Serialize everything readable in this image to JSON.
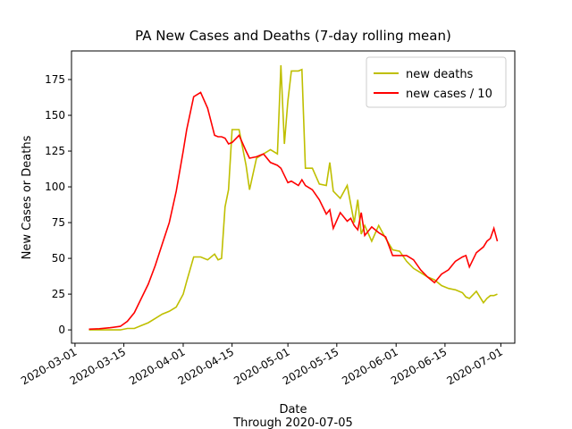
{
  "chart_data": {
    "type": "line",
    "title": "PA New Cases and Deaths (7-day rolling mean)",
    "x_label": "Date",
    "x_label_note": "Through 2020-07-05",
    "y_label": "New Cases or Deaths",
    "x": [
      "2020-03-05",
      "2020-03-08",
      "2020-03-11",
      "2020-03-14",
      "2020-03-16",
      "2020-03-18",
      "2020-03-20",
      "2020-03-22",
      "2020-03-24",
      "2020-03-26",
      "2020-03-28",
      "2020-03-30",
      "2020-04-01",
      "2020-04-02",
      "2020-04-04",
      "2020-04-06",
      "2020-04-08",
      "2020-04-10",
      "2020-04-11",
      "2020-04-12",
      "2020-04-13",
      "2020-04-14",
      "2020-04-15",
      "2020-04-17",
      "2020-04-19",
      "2020-04-20",
      "2020-04-22",
      "2020-04-24",
      "2020-04-26",
      "2020-04-28",
      "2020-04-29",
      "2020-04-30",
      "2020-05-01",
      "2020-05-02",
      "2020-05-04",
      "2020-05-05",
      "2020-05-06",
      "2020-05-08",
      "2020-05-10",
      "2020-05-12",
      "2020-05-13",
      "2020-05-14",
      "2020-05-16",
      "2020-05-18",
      "2020-05-19",
      "2020-05-20",
      "2020-05-21",
      "2020-05-22",
      "2020-05-23",
      "2020-05-25",
      "2020-05-27",
      "2020-05-29",
      "2020-05-31",
      "2020-06-02",
      "2020-06-04",
      "2020-06-06",
      "2020-06-08",
      "2020-06-10",
      "2020-06-12",
      "2020-06-14",
      "2020-06-16",
      "2020-06-18",
      "2020-06-20",
      "2020-06-21",
      "2020-06-22",
      "2020-06-24",
      "2020-06-26",
      "2020-06-27",
      "2020-06-28",
      "2020-06-29",
      "2020-06-30"
    ],
    "series": [
      {
        "name": "new deaths",
        "color": "#bfbf00",
        "values": [
          0,
          0,
          0,
          0,
          1,
          1,
          3,
          5,
          8,
          11,
          13,
          16,
          25,
          34,
          51,
          51,
          49,
          53,
          49,
          50,
          86,
          98,
          140,
          140,
          115,
          98,
          120,
          123,
          126,
          123,
          185,
          130,
          160,
          181,
          181,
          182,
          113,
          113,
          102,
          101,
          117,
          97,
          92,
          101,
          88,
          75,
          91,
          67,
          73,
          62,
          73,
          64,
          56,
          55,
          48,
          43,
          40,
          37,
          35,
          31,
          29,
          28,
          26,
          23,
          22,
          27,
          19,
          22,
          24,
          24,
          25
        ]
      },
      {
        "name": "new cases / 10",
        "color": "#ff0000",
        "values": [
          0.5,
          0.8,
          1.5,
          2.5,
          6,
          12,
          22,
          32,
          45,
          60,
          75,
          97,
          125,
          140,
          163,
          166,
          155,
          136,
          135,
          135,
          134,
          130,
          131,
          136,
          125,
          120,
          121,
          123,
          117,
          115,
          113,
          108,
          103,
          104,
          101,
          105,
          101,
          98,
          91,
          81,
          84,
          71,
          82,
          76,
          78,
          73,
          70,
          82,
          66,
          72,
          68,
          65,
          52,
          52,
          52,
          49,
          42,
          37,
          33,
          39,
          42,
          48,
          51,
          52,
          44,
          54,
          58,
          62,
          64,
          71,
          62
        ]
      }
    ],
    "xlim": [
      "2020-02-29",
      "2020-07-05"
    ],
    "xticks": [
      "2020-03-01",
      "2020-03-15",
      "2020-04-01",
      "2020-04-15",
      "2020-05-01",
      "2020-05-15",
      "2020-06-01",
      "2020-06-15",
      "2020-07-01"
    ],
    "ylim": [
      -9.3,
      195
    ],
    "yticks": [
      0,
      25,
      50,
      75,
      100,
      125,
      150,
      175
    ],
    "grid": false,
    "legend": "upper right"
  }
}
